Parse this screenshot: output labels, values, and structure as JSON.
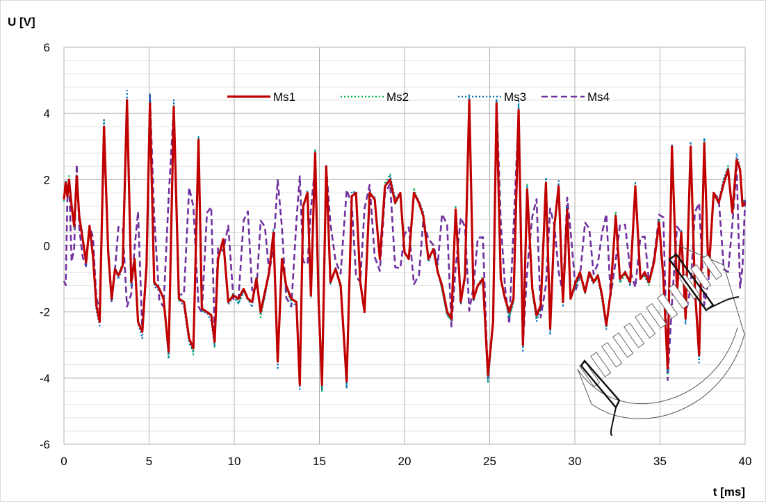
{
  "chart_data": {
    "type": "line",
    "ylabel": "U [V]",
    "xlabel": "t [ms]",
    "xlim": [
      0,
      40
    ],
    "ylim": [
      -6,
      6
    ],
    "x_ticks": [
      0,
      5,
      10,
      15,
      20,
      25,
      30,
      35,
      40
    ],
    "y_ticks": [
      6,
      4,
      2,
      0,
      -2,
      -4,
      -6
    ],
    "y_minor_step": 0.4,
    "grid": true,
    "legend_position": "top",
    "series": [
      {
        "name": "Ms1",
        "color": "#c00000",
        "style": "solid"
      },
      {
        "name": "Ms2",
        "color": "#00b050",
        "style": "dotted"
      },
      {
        "name": "Ms3",
        "color": "#0070c0",
        "style": "dotted"
      },
      {
        "name": "Ms4",
        "color": "#7030a0",
        "style": "dashed"
      }
    ],
    "ms1_points": [
      [
        0,
        1.4
      ],
      [
        0.1,
        1.9
      ],
      [
        0.2,
        1.5
      ],
      [
        0.3,
        2.0
      ],
      [
        0.45,
        1.2
      ],
      [
        0.6,
        0.6
      ],
      [
        0.75,
        2.1
      ],
      [
        0.9,
        0.9
      ],
      [
        1.1,
        0.2
      ],
      [
        1.3,
        -0.5
      ],
      [
        1.5,
        0.6
      ],
      [
        1.7,
        -0.3
      ],
      [
        1.9,
        -1.8
      ],
      [
        2.1,
        -2.3
      ],
      [
        2.35,
        3.6
      ],
      [
        2.6,
        -0.2
      ],
      [
        2.8,
        -1.6
      ],
      [
        3.0,
        -0.7
      ],
      [
        3.2,
        -0.9
      ],
      [
        3.45,
        -0.6
      ],
      [
        3.7,
        4.4
      ],
      [
        3.95,
        -1.1
      ],
      [
        4.15,
        -0.4
      ],
      [
        4.35,
        -2.3
      ],
      [
        4.6,
        -2.6
      ],
      [
        4.85,
        -0.6
      ],
      [
        5.05,
        4.3
      ],
      [
        5.3,
        -1.1
      ],
      [
        5.6,
        -1.3
      ],
      [
        5.85,
        -1.6
      ],
      [
        6.15,
        -3.2
      ],
      [
        6.45,
        4.2
      ],
      [
        6.75,
        -1.6
      ],
      [
        7.05,
        -1.7
      ],
      [
        7.35,
        -2.8
      ],
      [
        7.6,
        -3.1
      ],
      [
        7.9,
        3.2
      ],
      [
        8.1,
        -1.9
      ],
      [
        8.4,
        -2.0
      ],
      [
        8.65,
        -2.1
      ],
      [
        8.85,
        -2.9
      ],
      [
        9.05,
        -0.4
      ],
      [
        9.35,
        0.2
      ],
      [
        9.65,
        -1.7
      ],
      [
        9.95,
        -1.5
      ],
      [
        10.25,
        -1.6
      ],
      [
        10.55,
        -1.3
      ],
      [
        10.8,
        -1.6
      ],
      [
        11.05,
        -1.7
      ],
      [
        11.3,
        -1.0
      ],
      [
        11.55,
        -2.0
      ],
      [
        11.8,
        -1.4
      ],
      [
        12.05,
        -0.8
      ],
      [
        12.3,
        0.4
      ],
      [
        12.55,
        -3.5
      ],
      [
        12.8,
        -0.4
      ],
      [
        13.05,
        -1.2
      ],
      [
        13.35,
        -1.6
      ],
      [
        13.65,
        -1.7
      ],
      [
        13.85,
        -4.2
      ],
      [
        14.05,
        1.2
      ],
      [
        14.3,
        1.6
      ],
      [
        14.5,
        -1.5
      ],
      [
        14.75,
        2.8
      ],
      [
        14.95,
        -1.6
      ],
      [
        15.15,
        -4.2
      ],
      [
        15.4,
        2.4
      ],
      [
        15.65,
        -1.1
      ],
      [
        15.95,
        -0.7
      ],
      [
        16.25,
        -1.2
      ],
      [
        16.6,
        -4.1
      ],
      [
        16.9,
        1.5
      ],
      [
        17.15,
        1.6
      ],
      [
        17.4,
        -1.1
      ],
      [
        17.65,
        -2.0
      ],
      [
        17.95,
        1.6
      ],
      [
        18.25,
        1.4
      ],
      [
        18.55,
        -0.4
      ],
      [
        18.85,
        1.8
      ],
      [
        19.15,
        2.0
      ],
      [
        19.45,
        1.3
      ],
      [
        19.75,
        1.6
      ],
      [
        20.0,
        -0.2
      ],
      [
        20.25,
        -0.4
      ],
      [
        20.55,
        1.6
      ],
      [
        20.85,
        1.3
      ],
      [
        21.1,
        0.9
      ],
      [
        21.4,
        -0.4
      ],
      [
        21.7,
        -0.1
      ],
      [
        21.95,
        -0.8
      ],
      [
        22.2,
        -1.2
      ],
      [
        22.5,
        -2.0
      ],
      [
        22.75,
        -2.2
      ],
      [
        23.0,
        1.1
      ],
      [
        23.3,
        -1.7
      ],
      [
        23.55,
        -0.9
      ],
      [
        23.8,
        4.4
      ],
      [
        24.05,
        -1.6
      ],
      [
        24.3,
        -1.2
      ],
      [
        24.6,
        -1.0
      ],
      [
        24.9,
        -3.9
      ],
      [
        25.2,
        -2.3
      ],
      [
        25.4,
        4.3
      ],
      [
        25.65,
        -1.0
      ],
      [
        25.9,
        -1.6
      ],
      [
        26.15,
        -2.0
      ],
      [
        26.4,
        -1.6
      ],
      [
        26.7,
        4.1
      ],
      [
        26.95,
        -3.0
      ],
      [
        27.2,
        1.7
      ],
      [
        27.5,
        -1.3
      ],
      [
        27.75,
        -2.1
      ],
      [
        28.0,
        -1.8
      ],
      [
        28.3,
        1.9
      ],
      [
        28.55,
        -2.5
      ],
      [
        28.8,
        0.6
      ],
      [
        29.05,
        1.8
      ],
      [
        29.3,
        -1.7
      ],
      [
        29.55,
        1.1
      ],
      [
        29.75,
        -1.6
      ],
      [
        30.05,
        -1.1
      ],
      [
        30.3,
        -0.8
      ],
      [
        30.6,
        -1.4
      ],
      [
        30.85,
        -0.8
      ],
      [
        31.1,
        -1.1
      ],
      [
        31.35,
        -0.9
      ],
      [
        31.6,
        -1.5
      ],
      [
        31.85,
        -2.4
      ],
      [
        32.1,
        -1.4
      ],
      [
        32.4,
        0.9
      ],
      [
        32.65,
        -1.0
      ],
      [
        32.95,
        -0.8
      ],
      [
        33.25,
        -1.1
      ],
      [
        33.55,
        1.8
      ],
      [
        33.85,
        -1.0
      ],
      [
        34.1,
        -0.8
      ],
      [
        34.35,
        -1.1
      ],
      [
        34.65,
        -0.5
      ],
      [
        34.95,
        0.7
      ],
      [
        35.2,
        -1.0
      ],
      [
        35.45,
        -3.7
      ],
      [
        35.7,
        3.0
      ],
      [
        36.0,
        -1.4
      ],
      [
        36.25,
        0.4
      ],
      [
        36.5,
        -2.2
      ],
      [
        36.8,
        3.0
      ],
      [
        37.05,
        -1.3
      ],
      [
        37.3,
        -3.3
      ],
      [
        37.6,
        3.1
      ],
      [
        37.85,
        -0.9
      ],
      [
        38.15,
        1.6
      ],
      [
        38.45,
        1.3
      ],
      [
        38.75,
        1.9
      ],
      [
        39.0,
        2.3
      ],
      [
        39.25,
        1.0
      ],
      [
        39.5,
        2.6
      ],
      [
        39.7,
        2.3
      ],
      [
        39.85,
        1.2
      ],
      [
        40.0,
        1.3
      ]
    ]
  }
}
